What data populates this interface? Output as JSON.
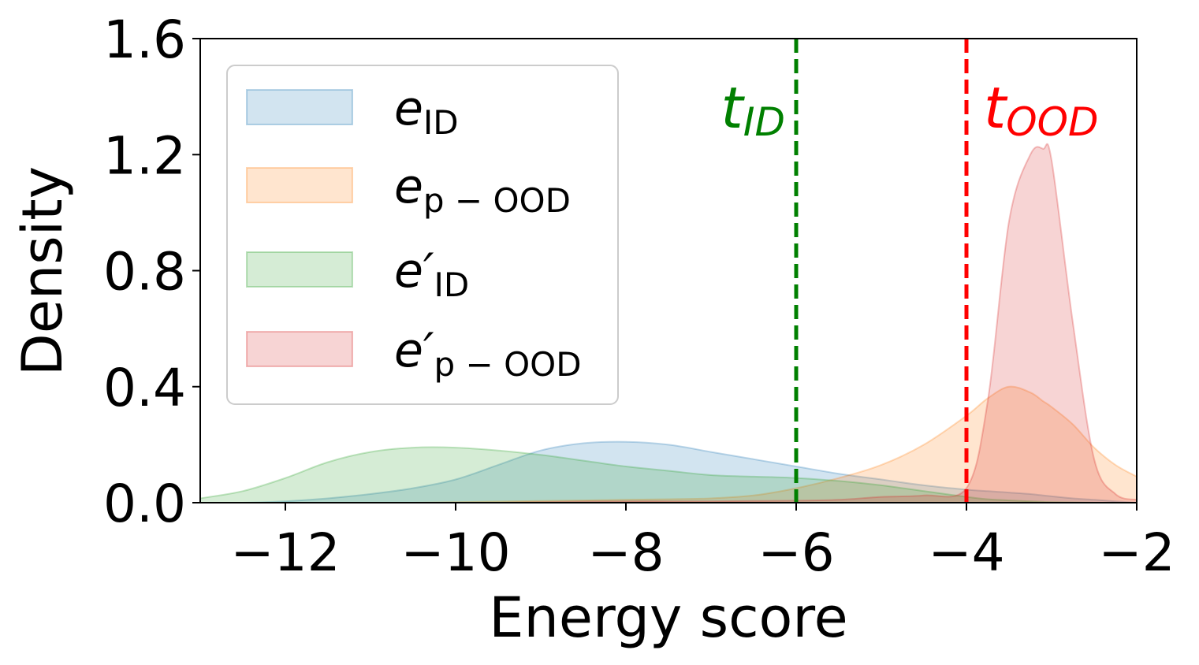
{
  "chart_data": {
    "type": "area",
    "xlabel": "Energy score",
    "ylabel": "Density",
    "xlim": [
      -13,
      -2
    ],
    "ylim": [
      0,
      1.6
    ],
    "xticks": [
      -12,
      -10,
      -8,
      -6,
      -4,
      -2
    ],
    "yticks": [
      0.0,
      0.4,
      0.8,
      1.2,
      1.6
    ],
    "xtick_labels": [
      "−12",
      "−10",
      "−8",
      "−6",
      "−4",
      "−2"
    ],
    "ytick_labels": [
      "0.0",
      "0.4",
      "0.8",
      "1.2",
      "1.6"
    ],
    "grid": false,
    "legend_position": "upper-left",
    "x": [
      -13,
      -12.5,
      -12,
      -11.5,
      -11,
      -10.5,
      -10,
      -9.5,
      -9,
      -8.5,
      -8,
      -7.5,
      -7,
      -6.5,
      -6,
      -5.5,
      -5,
      -4.5,
      -4,
      -3.75,
      -3.5,
      -3.25,
      -3.1,
      -3,
      -2.75,
      -2.5,
      -2.25,
      -2
    ],
    "series": [
      {
        "name": "e_ID",
        "label_base": "e",
        "label_prime": "",
        "label_sub": "ID",
        "color": "#1f77b4",
        "values": [
          0.0,
          0.0,
          0.005,
          0.015,
          0.03,
          0.05,
          0.08,
          0.13,
          0.18,
          0.205,
          0.21,
          0.2,
          0.175,
          0.15,
          0.125,
          0.1,
          0.08,
          0.06,
          0.045,
          0.04,
          0.035,
          0.03,
          0.025,
          0.022,
          0.015,
          0.01,
          0.005,
          0.0
        ]
      },
      {
        "name": "e_p-OOD",
        "label_base": "e",
        "label_prime": "",
        "label_sub": "p − OOD",
        "color": "#ff7f0e",
        "values": [
          0.0,
          0.0,
          0.0,
          0.0,
          0.0,
          0.0,
          0.002,
          0.004,
          0.006,
          0.008,
          0.01,
          0.012,
          0.015,
          0.025,
          0.05,
          0.085,
          0.13,
          0.2,
          0.3,
          0.36,
          0.4,
          0.38,
          0.35,
          0.33,
          0.27,
          0.19,
          0.13,
          0.09
        ]
      },
      {
        "name": "e'_ID",
        "label_base": "e",
        "label_prime": "′",
        "label_sub": "ID",
        "color": "#2ca02c",
        "values": [
          0.015,
          0.04,
          0.085,
          0.14,
          0.175,
          0.19,
          0.19,
          0.18,
          0.165,
          0.145,
          0.125,
          0.11,
          0.095,
          0.09,
          0.085,
          0.075,
          0.06,
          0.04,
          0.02,
          0.012,
          0.008,
          0.005,
          0.003,
          0.002,
          0.001,
          0.0,
          0.0,
          0.0
        ]
      },
      {
        "name": "e'_p-OOD",
        "label_base": "e",
        "label_prime": "′",
        "label_sub": "p − OOD",
        "color": "#d62728",
        "values": [
          0.0,
          0.0,
          0.0,
          0.0,
          0.0,
          0.0,
          0.0,
          0.0,
          0.002,
          0.004,
          0.005,
          0.005,
          0.005,
          0.006,
          0.007,
          0.01,
          0.02,
          0.025,
          0.05,
          0.35,
          0.97,
          1.2,
          1.22,
          1.18,
          0.62,
          0.15,
          0.03,
          0.01
        ]
      }
    ],
    "thresholds": [
      {
        "name": "t_ID",
        "label_main": "t",
        "label_sub": "ID",
        "x": -6,
        "color": "#008000"
      },
      {
        "name": "t_OOD",
        "label_main": "t",
        "label_sub": "OOD",
        "x": -4,
        "color": "#ff0000"
      }
    ]
  }
}
